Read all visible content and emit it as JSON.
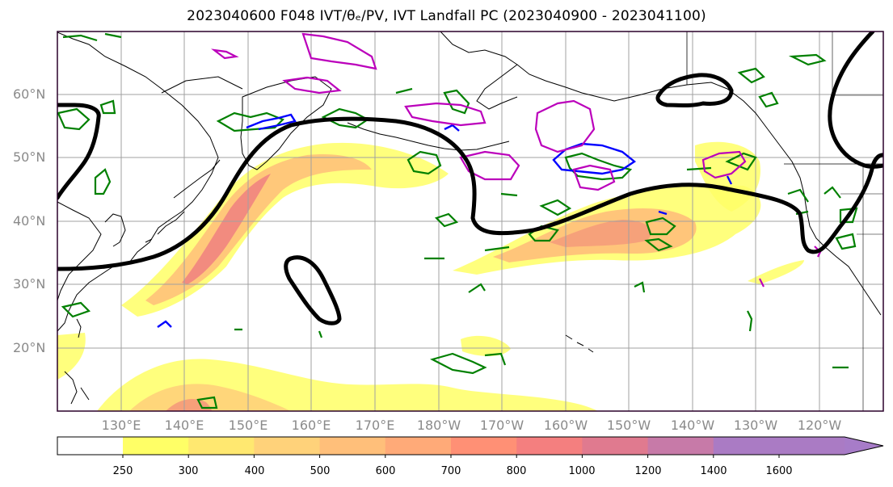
{
  "title": "2023040600 F048 IVT/θₑ/PV, IVT Landfall PC (2023040900 - 2023041100)",
  "map": {
    "lon_range": [
      120,
      250
    ],
    "lat_range": [
      10,
      70
    ],
    "lat_ticks": [
      "20°N",
      "30°N",
      "40°N",
      "50°N",
      "60°N"
    ],
    "lon_ticks": [
      "130°E",
      "140°E",
      "150°E",
      "160°E",
      "170°E",
      "180°W",
      "170°W",
      "160°W",
      "150°W",
      "140°W",
      "130°W",
      "120°W"
    ],
    "grid": true
  },
  "colorbar": {
    "levels": [
      "250",
      "300",
      "400",
      "500",
      "600",
      "700",
      "800",
      "1000",
      "1200",
      "1400",
      "1600"
    ],
    "colors": [
      "#ffff66",
      "#ffe870",
      "#ffd27a",
      "#ffbf7a",
      "#ffaa78",
      "#ff9075",
      "#f47f7f",
      "#e07a8f",
      "#c77aa8",
      "#aa7bc4"
    ],
    "extend": "max",
    "colormap": "white-yellow-orange-red-purple"
  },
  "legend_colors": {
    "ivt_landfall_pc": "#000000",
    "theta_e": "#008000",
    "pv_blue": "#0000ff",
    "pv_magenta": "#bb00bb"
  }
}
